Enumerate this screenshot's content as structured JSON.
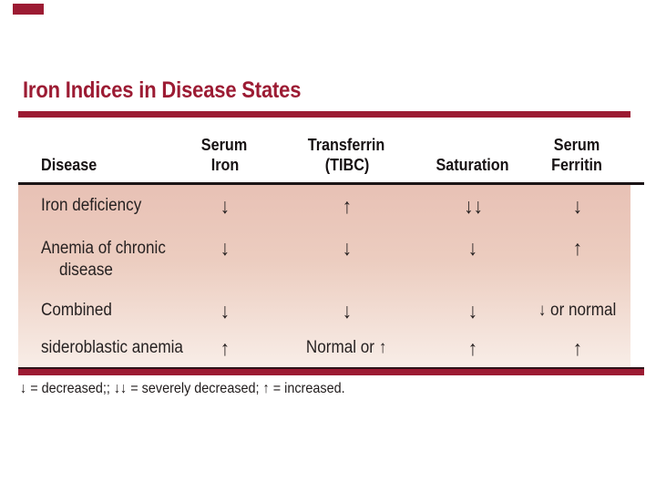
{
  "slide": {
    "title": "Iron Indices in Disease States",
    "accent_color": "#9C1B33"
  },
  "table": {
    "columns": [
      {
        "label_lines": [
          "Disease"
        ]
      },
      {
        "label_lines": [
          "Serum",
          "Iron"
        ]
      },
      {
        "label_lines": [
          "Transferrin",
          "(TIBC)"
        ]
      },
      {
        "label_lines": [
          "Saturation"
        ]
      },
      {
        "label_lines": [
          "Serum",
          "Ferritin"
        ]
      }
    ],
    "rows": [
      {
        "disease_lines": [
          "Iron deficiency"
        ],
        "serum_iron": "↓",
        "transferrin_tibc": "↑",
        "saturation": "↓↓",
        "serum_ferritin": "↓"
      },
      {
        "disease_lines": [
          "Anemia of chronic",
          "disease"
        ],
        "serum_iron": "↓",
        "transferrin_tibc": "↓",
        "saturation": "↓",
        "serum_ferritin": "↑"
      },
      {
        "disease_lines": [
          "Combined"
        ],
        "serum_iron": "↓",
        "transferrin_tibc": "↓",
        "saturation": "↓",
        "serum_ferritin": "↓ or normal"
      },
      {
        "disease_lines": [
          "sideroblastic anemia"
        ],
        "serum_iron": "↑",
        "transferrin_tibc": "Normal or ↑",
        "saturation": "↑",
        "serum_ferritin": "↑"
      }
    ],
    "footnote": "↓ = decreased;; ↓↓ = severely decreased; ↑ = increased."
  }
}
